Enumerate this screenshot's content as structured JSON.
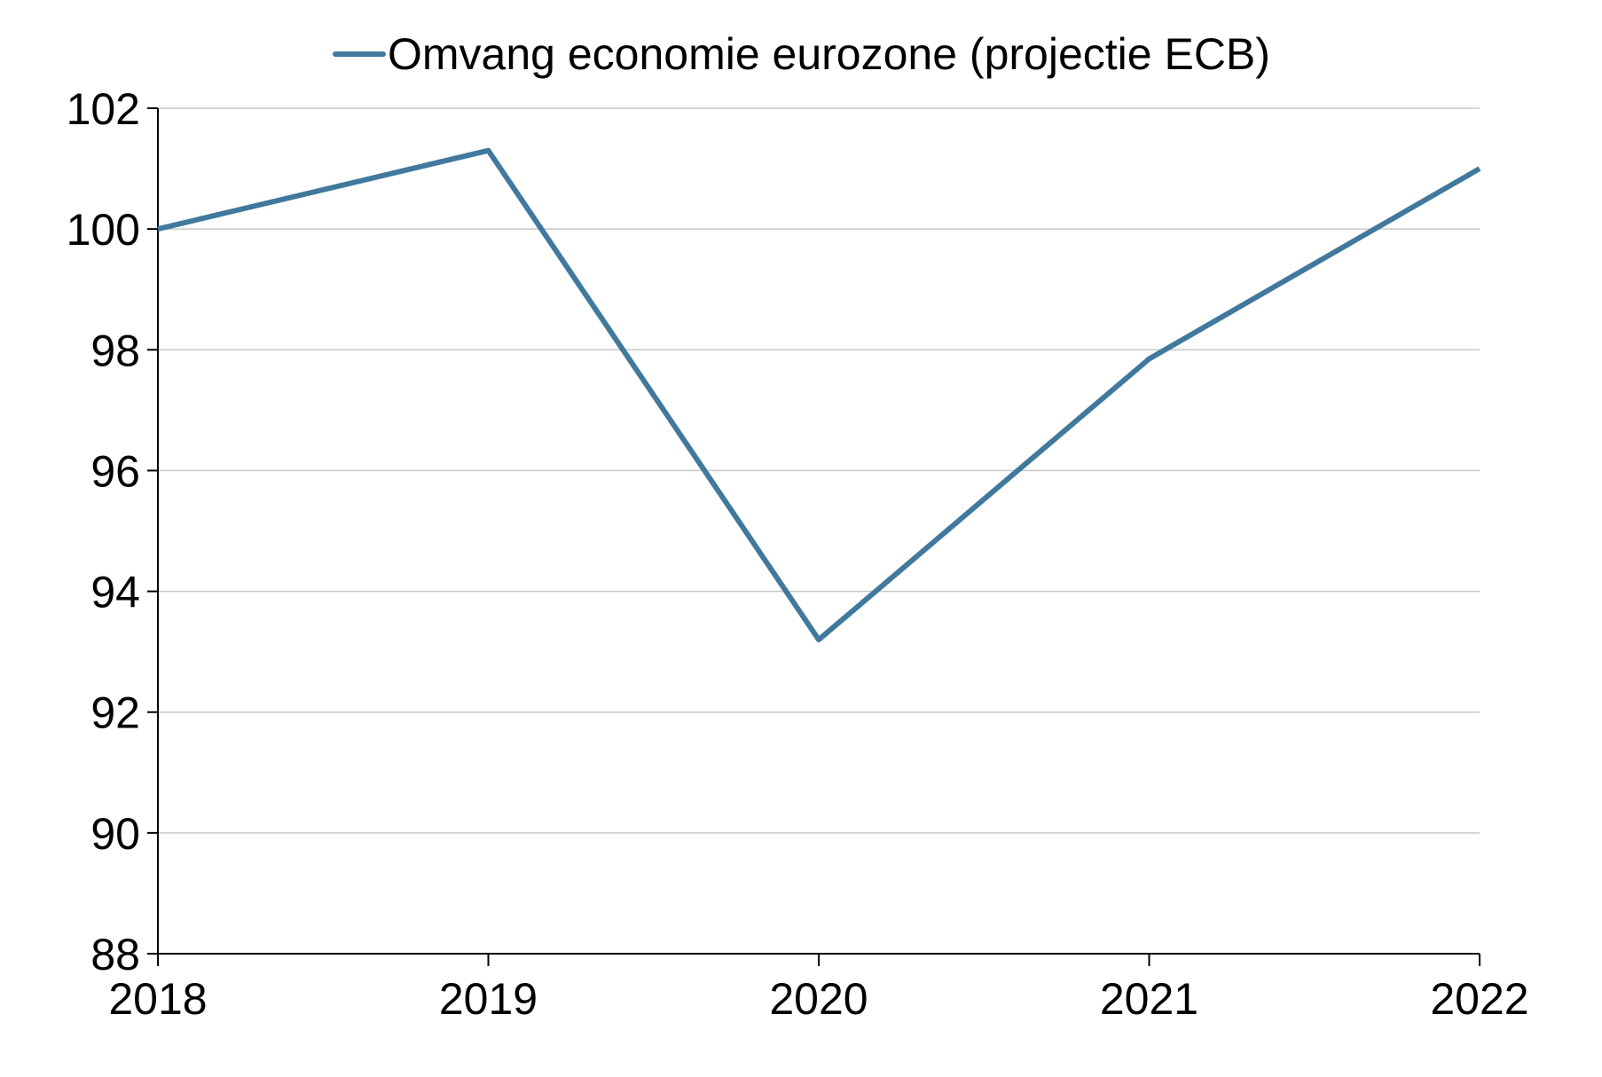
{
  "chart_data": {
    "type": "line",
    "title": "",
    "xlabel": "",
    "ylabel": "",
    "categories": [
      "2018",
      "2019",
      "2020",
      "2021",
      "2022"
    ],
    "series": [
      {
        "name": "Omvang economie eurozone (projectie ECB)",
        "color": "#41799e",
        "values": [
          100.0,
          101.3,
          93.2,
          97.85,
          101.0
        ]
      }
    ],
    "ylim": [
      88,
      102
    ],
    "yticks": [
      88,
      90,
      92,
      94,
      96,
      98,
      100,
      102
    ],
    "grid": true,
    "legend_position": "top-center"
  }
}
